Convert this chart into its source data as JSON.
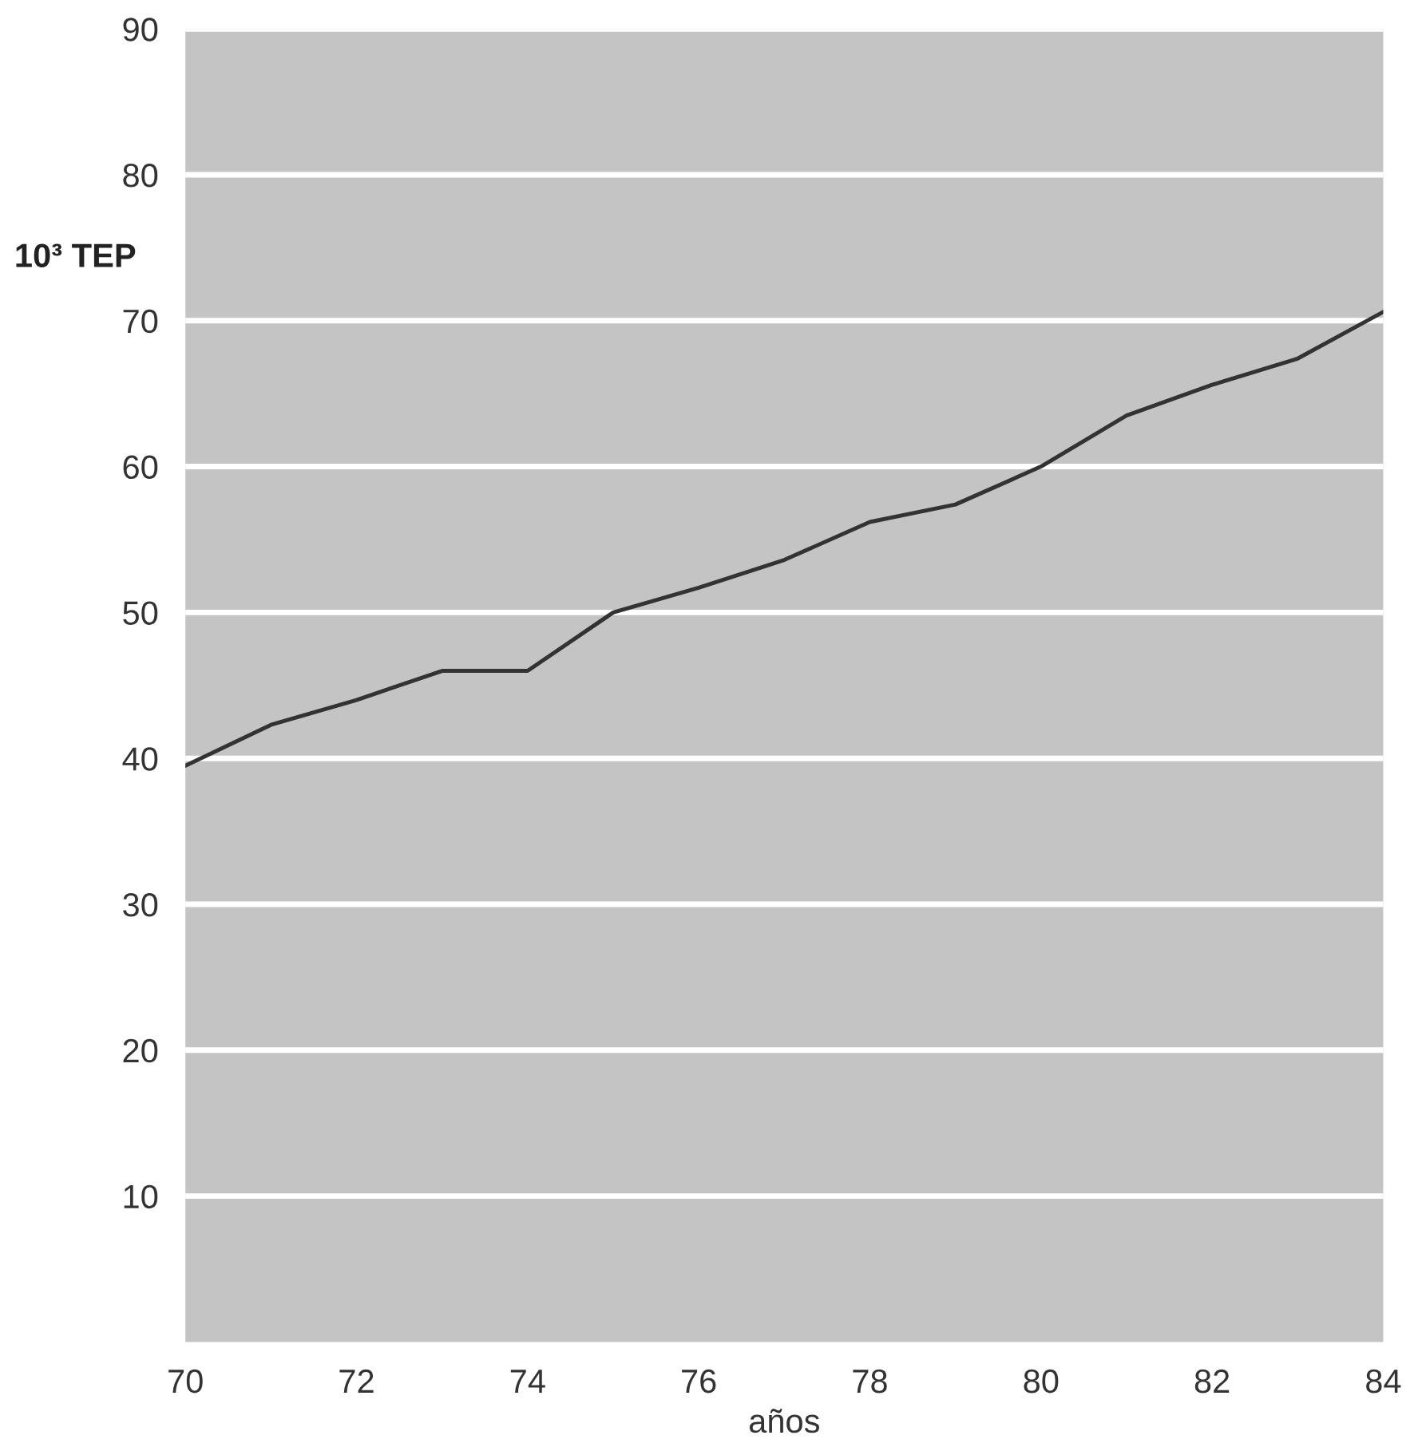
{
  "chart_data": {
    "type": "line",
    "ylabel": "10³ TEP",
    "xlabel": "años",
    "x": [
      70,
      71,
      72,
      73,
      74,
      75,
      76,
      77,
      78,
      79,
      80,
      81,
      82,
      83,
      84
    ],
    "series": [
      {
        "color": "#333333",
        "values": [
          39.5,
          42.3,
          44,
          46,
          46,
          50,
          51.7,
          53.6,
          56.2,
          57.4,
          60,
          63.5,
          65.6,
          67.4,
          70.6
        ]
      }
    ],
    "xlim": [
      70,
      84
    ],
    "xticks": [
      70,
      72,
      74,
      76,
      78,
      80,
      82,
      84
    ],
    "ylim": [
      0,
      90
    ],
    "yticks": [
      10,
      20,
      30,
      40,
      50,
      60,
      70,
      80,
      90
    ],
    "grid": "y",
    "marker": "none",
    "line_style": "solid"
  }
}
